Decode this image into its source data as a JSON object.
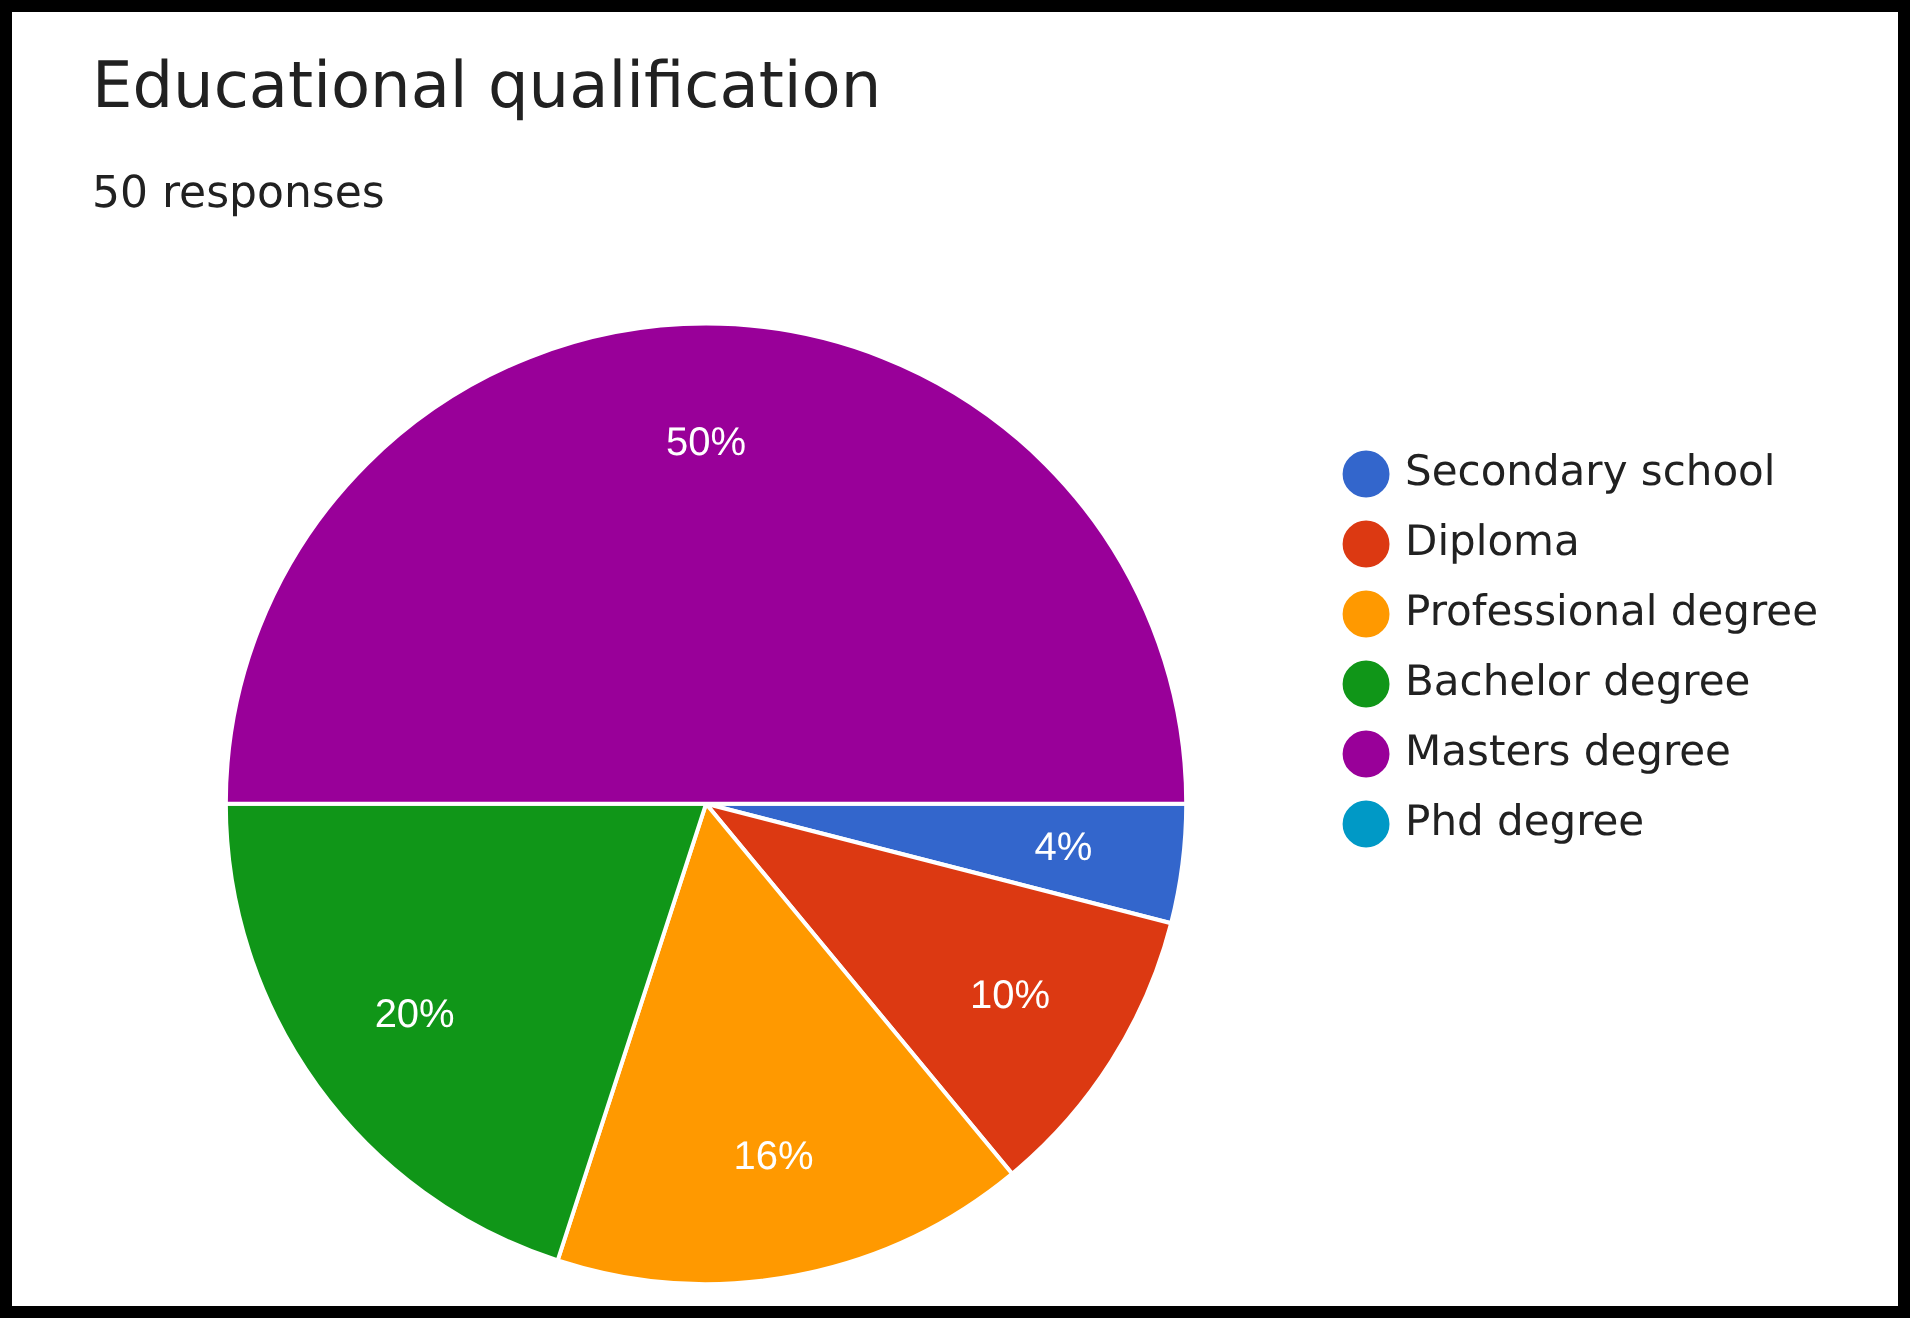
{
  "chart_data": {
    "type": "pie",
    "title": "Educational qualification",
    "subtitle": "50 responses",
    "categories": [
      "Secondary school",
      "Diploma",
      "Professional degree",
      "Bachelor degree",
      "Masters degree",
      "Phd degree"
    ],
    "values": [
      4,
      10,
      16,
      20,
      50,
      0
    ],
    "colors": [
      "#3366cc",
      "#dc3912",
      "#ff9900",
      "#109618",
      "#990099",
      "#0099c6"
    ],
    "value_labels": [
      "4%",
      "10%",
      "16%",
      "20%",
      "50%",
      null
    ],
    "legend": "right"
  }
}
